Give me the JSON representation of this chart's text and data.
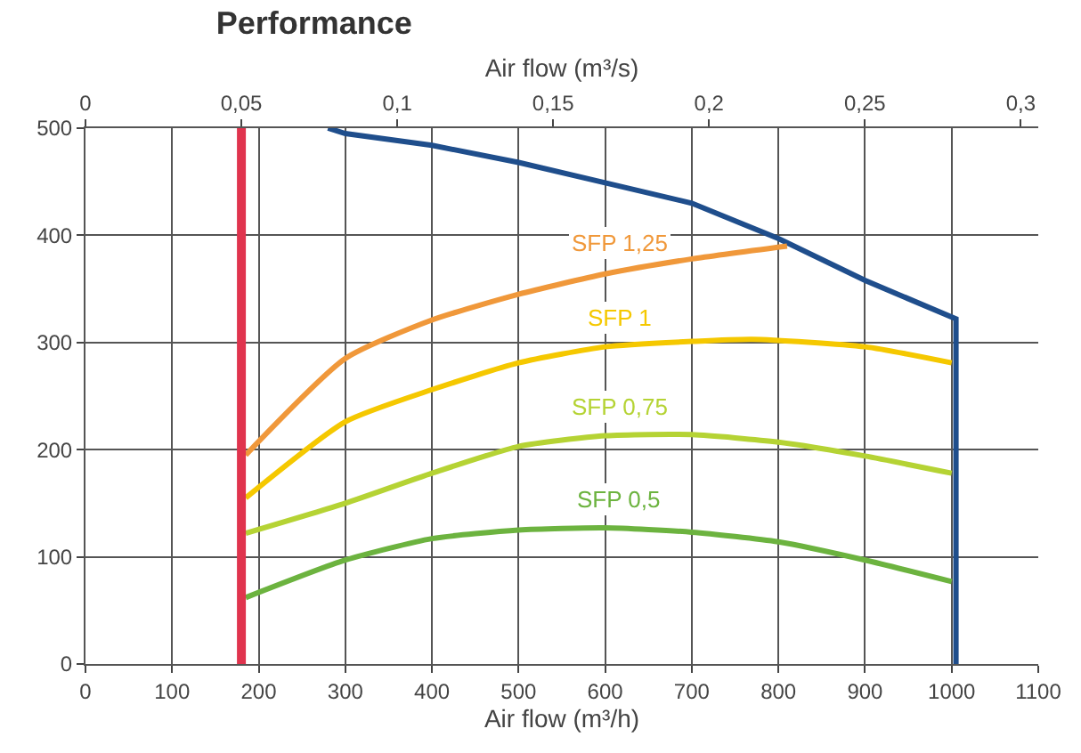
{
  "chart_data": {
    "type": "line",
    "title": "Performance",
    "xlabel": "Air flow (m³/h)",
    "x2label": "Air flow (m³/s)",
    "xlim": [
      0,
      1100
    ],
    "xticks": [
      0,
      100,
      200,
      300,
      400,
      500,
      600,
      700,
      800,
      900,
      1000,
      1100
    ],
    "x2lim": [
      0,
      0.3056
    ],
    "x2ticks": [
      0,
      {
        "value": 0.05,
        "label": "0,05"
      },
      {
        "value": 0.1,
        "label": "0,1"
      },
      {
        "value": 0.15,
        "label": "0,15"
      },
      {
        "value": 0.2,
        "label": "0,2"
      },
      {
        "value": 0.25,
        "label": "0,25"
      },
      {
        "value": 0.3,
        "label": "0,3"
      }
    ],
    "ylim": [
      0,
      500
    ],
    "yticks": [
      0,
      100,
      200,
      300,
      400,
      500
    ],
    "grid": true,
    "legend": false,
    "marker": "none",
    "line_style": "solid",
    "series": [
      {
        "color": "#1f4e8c",
        "x": [
          280,
          300,
          400,
          500,
          600,
          700,
          800,
          900,
          1005,
          1005
        ],
        "values": [
          500,
          495,
          484,
          468,
          449,
          430,
          397,
          358,
          322,
          0
        ]
      },
      {
        "name": "SFP 1,25",
        "color": "#f0983a",
        "x": [
          185,
          300,
          400,
          500,
          600,
          700,
          810
        ],
        "values": [
          195,
          285,
          321,
          345,
          364,
          378,
          390
        ]
      },
      {
        "name": "SFP 1",
        "color": "#f5c800",
        "x": [
          185,
          300,
          400,
          500,
          600,
          700,
          770,
          900,
          1000
        ],
        "values": [
          155,
          226,
          256,
          281,
          296,
          301,
          303,
          296,
          281
        ]
      },
      {
        "name": "SFP 0,75",
        "color": "#b5d334",
        "x": [
          185,
          300,
          400,
          500,
          600,
          700,
          800,
          900,
          1000
        ],
        "values": [
          122,
          150,
          178,
          203,
          213,
          214,
          207,
          194,
          178
        ]
      },
      {
        "name": "SFP 0,5",
        "color": "#6cb33f",
        "x": [
          185,
          300,
          400,
          500,
          600,
          700,
          800,
          900,
          1000
        ],
        "values": [
          62,
          97,
          117,
          125,
          127,
          123,
          114,
          97,
          77
        ]
      }
    ],
    "ref_lines": [
      {
        "axis": "x",
        "value": 180,
        "color": "#e0344e"
      }
    ]
  }
}
